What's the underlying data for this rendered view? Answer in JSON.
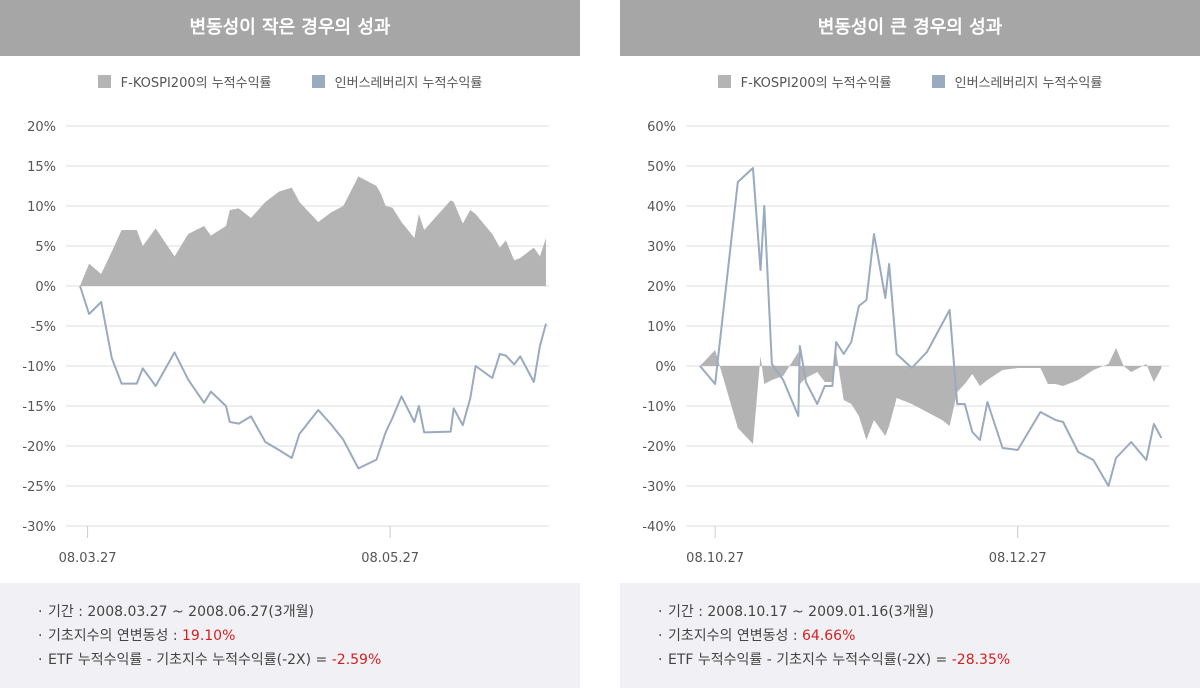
{
  "colors": {
    "kospi": "#b4b4b4",
    "inverse": "#9aaabf",
    "highlight": "#d62020",
    "header": "#a6a6a6",
    "grid": "#dddddd"
  },
  "legend": {
    "kospi": "F-KOSPI200의 누적수익률",
    "inverse": "인버스레버리지 누적수익률"
  },
  "panels": [
    {
      "title": "변동성이 작은 경우의 성과",
      "footer": {
        "period": "기간 : 2008.03.27 ~ 2008.06.27(3개월)",
        "vol_label": "기초지수의 연변동성 : ",
        "vol_value": "19.10%",
        "etf_label": "ETF 누적수익률 - 기초지수 누적수익률(-2X) = ",
        "etf_value": "-2.59%"
      }
    },
    {
      "title": "변동성이 큰 경우의 성과",
      "footer": {
        "period": "기간 : 2008.10.17 ~ 2009.01.16(3개월)",
        "vol_label": "기초지수의 연변동성 : ",
        "vol_value": "64.66%",
        "etf_label": "ETF 누적수익률 - 기초지수 누적수익률(-2X) = ",
        "etf_value": "-28.35%"
      }
    }
  ],
  "chart_data": [
    {
      "type": "area",
      "ylim": [
        -30,
        20
      ],
      "yticks": [
        20,
        15,
        10,
        5,
        0,
        -5,
        -10,
        -15,
        -20,
        -25,
        -30
      ],
      "ytick_labels": [
        "20%",
        "15%",
        "10%",
        "5%",
        "0%",
        "-5%",
        "-10%",
        "-15%",
        "-20%",
        "-25%",
        "-30%"
      ],
      "xlim": [
        0,
        62
      ],
      "xticks": [
        {
          "x": 1,
          "label": "08.03.27"
        },
        {
          "x": 41,
          "label": "08.05.27"
        }
      ],
      "legend": "top-center",
      "series": [
        {
          "name": "F-KOSPI200의 누적수익률",
          "type": "area",
          "x": [
            0,
            1.2,
            2.8,
            4.2,
            5.5,
            7.5,
            8.3,
            10,
            12.5,
            14.3,
            16.4,
            17.3,
            19.3,
            19.8,
            21,
            22.6,
            24.5,
            26.3,
            28,
            29,
            31.5,
            33.2,
            34.8,
            36.8,
            39.2,
            39.8,
            40.4,
            41.3,
            42.5,
            44.2,
            44.8,
            45.5,
            49,
            49.4,
            50.6,
            51.6,
            52.3,
            54.5,
            55.5,
            56.3,
            57.4,
            58.2,
            60,
            60.8,
            61.6
          ],
          "values": [
            0,
            2.8,
            1.5,
            4.3,
            7,
            7,
            5,
            7.2,
            3.7,
            6.5,
            7.5,
            6.3,
            7.5,
            9.5,
            9.7,
            8.5,
            10.5,
            11.8,
            12.3,
            10.5,
            8,
            9.2,
            10,
            13.7,
            12.5,
            11.5,
            10,
            9.8,
            8,
            6,
            9,
            7,
            10.7,
            10.5,
            7.8,
            9.5,
            9,
            6.5,
            4.8,
            5.7,
            3.2,
            3.5,
            4.8,
            3.7,
            6
          ]
        },
        {
          "name": "인버스레버리지 누적수익률",
          "type": "line",
          "x": [
            0,
            1.2,
            2.8,
            4.2,
            5.5,
            7.5,
            8.3,
            10,
            12.5,
            14.3,
            16.4,
            17.3,
            19.3,
            19.8,
            21,
            22.6,
            24.5,
            26.3,
            28,
            29,
            31.5,
            33.2,
            34.8,
            36.8,
            39.2,
            39.8,
            40.4,
            41.3,
            42.5,
            44.2,
            44.8,
            45.5,
            49,
            49.4,
            50.6,
            51.6,
            52.3,
            54.5,
            55.5,
            56.3,
            57.4,
            58.2,
            60,
            60.8,
            61.6
          ],
          "values": [
            0,
            -3.5,
            -2,
            -9,
            -12.2,
            -12.2,
            -10.3,
            -12.5,
            -8.3,
            -11.7,
            -14.6,
            -13.2,
            -15,
            -17,
            -17.2,
            -16.3,
            -19.5,
            -20.5,
            -21.5,
            -18.5,
            -15.5,
            -17.3,
            -19.2,
            -22.8,
            -21.7,
            -20,
            -18.3,
            -16.5,
            -13.8,
            -17,
            -15,
            -18.3,
            -18.2,
            -15.3,
            -17.4,
            -14,
            -10,
            -11.5,
            -8.5,
            -8.7,
            -9.8,
            -8.8,
            -12,
            -7.5,
            -4.7
          ]
        }
      ]
    },
    {
      "type": "area",
      "ylim": [
        -40,
        60
      ],
      "yticks": [
        60,
        50,
        40,
        30,
        20,
        10,
        0,
        -10,
        -20,
        -30,
        -40
      ],
      "ytick_labels": [
        "60%",
        "50%",
        "40%",
        "30%",
        "20%",
        "10%",
        "0%",
        "-10%",
        "-20%",
        "-30%",
        "-40%"
      ],
      "xlim": [
        0,
        62
      ],
      "xticks": [
        {
          "x": 2,
          "label": "08.10.27"
        },
        {
          "x": 42,
          "label": "08.12.27"
        }
      ],
      "legend": "top-center",
      "series": [
        {
          "name": "F-KOSPI200의 누적수익률",
          "type": "area",
          "x": [
            0,
            2,
            5,
            7,
            8,
            8.5,
            9.5,
            11,
            13,
            13.2,
            14,
            15.5,
            16.5,
            17.5,
            18,
            19,
            20,
            21,
            22,
            23,
            24.5,
            25,
            26,
            28,
            30,
            32,
            33,
            34,
            35,
            36,
            37,
            38,
            40,
            42,
            45,
            46,
            47,
            48,
            50,
            52,
            54,
            55,
            56,
            57,
            59,
            60,
            61
          ],
          "values": [
            0,
            4,
            -15.5,
            -19.5,
            2.5,
            -4.5,
            -3.5,
            -2.5,
            3.5,
            -4.5,
            -3,
            -1.5,
            -4,
            -4,
            3.5,
            -8.5,
            -9.5,
            -12.5,
            -18.5,
            -13.5,
            -17.5,
            -15,
            -8,
            -9.5,
            -11.5,
            -13.5,
            -15,
            -6.5,
            -4.5,
            -2,
            -5,
            -3.5,
            -1,
            -0.5,
            -0.5,
            -4.5,
            -4.5,
            -5,
            -3.5,
            -1,
            0.5,
            4.5,
            0,
            -1.5,
            0.5,
            -4,
            -0.5
          ]
        },
        {
          "name": "인버스레버리지 누적수익률",
          "type": "line",
          "x": [
            0,
            2,
            5,
            7,
            8,
            8.5,
            9.5,
            11,
            13,
            13.2,
            14,
            15.5,
            16.5,
            17.5,
            18,
            19,
            20,
            21,
            22,
            23,
            24.5,
            25,
            26,
            28,
            30,
            32,
            33,
            34,
            35,
            36,
            37,
            38,
            40,
            42,
            45,
            46,
            47,
            48,
            50,
            52,
            54,
            55,
            56,
            57,
            59,
            60,
            61
          ],
          "values": [
            0,
            -4.5,
            46,
            49.5,
            24,
            40,
            0.5,
            -3.5,
            -12.5,
            5,
            -4,
            -9.5,
            -5,
            -5,
            6,
            3,
            6,
            15,
            16.5,
            33,
            17,
            25.5,
            3,
            -0.5,
            3.5,
            10.5,
            14,
            -9.5,
            -9.5,
            -16.5,
            -18.5,
            -9,
            -20.5,
            -21,
            -11.5,
            -12.5,
            -13.5,
            -14,
            -21.5,
            -23.5,
            -30,
            -23,
            -21,
            -19,
            -23.5,
            -14.5,
            -18
          ]
        }
      ]
    }
  ]
}
